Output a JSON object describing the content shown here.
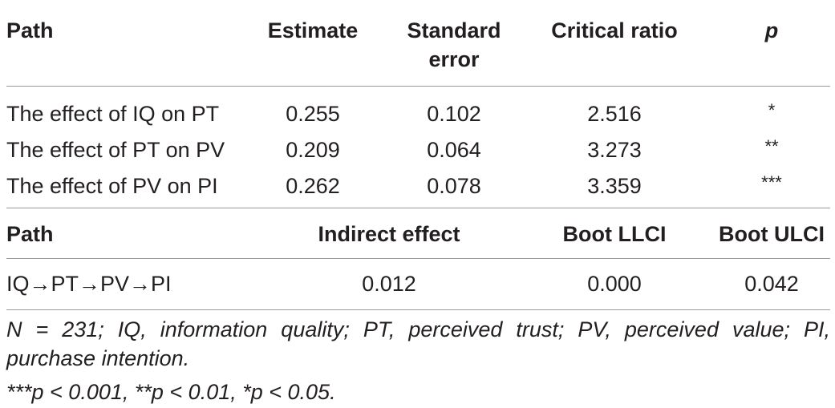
{
  "table1": {
    "headers": {
      "path": "Path",
      "estimate": "Estimate",
      "se_line1": "Standard",
      "se_line2": "error",
      "cr": "Critical ratio",
      "p": "p"
    },
    "rows": [
      {
        "path": "The effect of IQ on PT",
        "estimate": "0.255",
        "se": "0.102",
        "cr": "2.516",
        "p": "*"
      },
      {
        "path": "The effect of PT on PV",
        "estimate": "0.209",
        "se": "0.064",
        "cr": "3.273",
        "p": "**"
      },
      {
        "path": "The effect of PV on PI",
        "estimate": "0.262",
        "se": "0.078",
        "cr": "3.359",
        "p": "***"
      }
    ]
  },
  "table2": {
    "headers": {
      "path": "Path",
      "indirect": "Indirect effect",
      "llci": "Boot LLCI",
      "ulci": "Boot ULCI"
    },
    "rows": [
      {
        "path": "IQ→PT→PV→PI",
        "indirect": "0.012",
        "llci": "0.000",
        "ulci": "0.042"
      }
    ]
  },
  "notes": {
    "line1": "N = 231; IQ, information quality; PT, perceived trust; PV, perceived value; PI, purchase intention.",
    "line2": "***p < 0.001, **p < 0.01, *p < 0.05."
  },
  "colors": {
    "text": "#231f20",
    "rule": "#9a9a9a"
  }
}
